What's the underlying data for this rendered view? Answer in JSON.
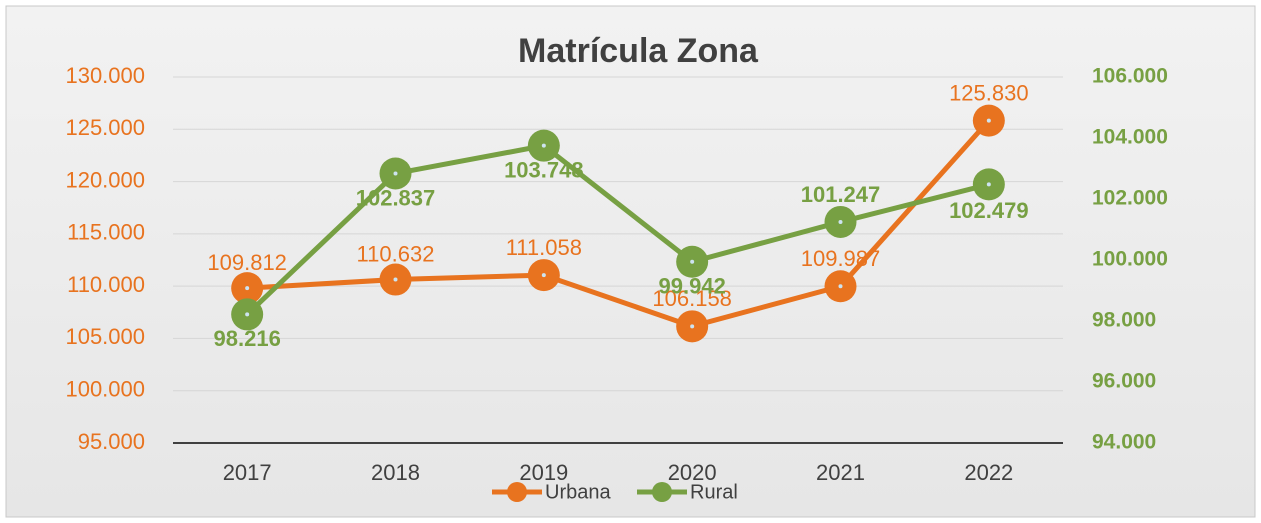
{
  "chart_data": {
    "type": "line",
    "title": "Matrícula Zona",
    "categories": [
      "2017",
      "2018",
      "2019",
      "2020",
      "2021",
      "2022"
    ],
    "series": [
      {
        "name": "Urbana",
        "color": "#e8731f",
        "values": [
          109812,
          110632,
          111058,
          106158,
          109987,
          125830
        ],
        "value_labels": [
          "109.812",
          "110.632",
          "111.058",
          "106.158",
          "109.987",
          "125.830"
        ]
      },
      {
        "name": "Rural",
        "color": "#77a043",
        "axis": "y2",
        "values": [
          98216,
          102837,
          103748,
          99942,
          101247,
          102479
        ],
        "value_labels": [
          "98.216",
          "102.837",
          "103.748",
          "99.942",
          "101.247",
          "102.479"
        ]
      }
    ],
    "ylim": [
      95000,
      130000
    ],
    "yticks": [
      {
        "value": 95000,
        "label": "95.000"
      },
      {
        "value": 100000,
        "label": "100.000"
      },
      {
        "value": 105000,
        "label": "105.000"
      },
      {
        "value": 110000,
        "label": "110.000"
      },
      {
        "value": 115000,
        "label": "115.000"
      },
      {
        "value": 120000,
        "label": "120.000"
      },
      {
        "value": 125000,
        "label": "125.000"
      },
      {
        "value": 130000,
        "label": "130.000"
      }
    ],
    "y2lim": [
      94000,
      106000
    ],
    "y2ticks": [
      {
        "value": 94000,
        "label": "94.000"
      },
      {
        "value": 96000,
        "label": "96.000"
      },
      {
        "value": 98000,
        "label": "98.000"
      },
      {
        "value": 100000,
        "label": "100.000"
      },
      {
        "value": 102000,
        "label": "102.000"
      },
      {
        "value": 104000,
        "label": "104.000"
      },
      {
        "value": 106000,
        "label": "106.000"
      }
    ],
    "grid": true,
    "legend": "bottom"
  }
}
